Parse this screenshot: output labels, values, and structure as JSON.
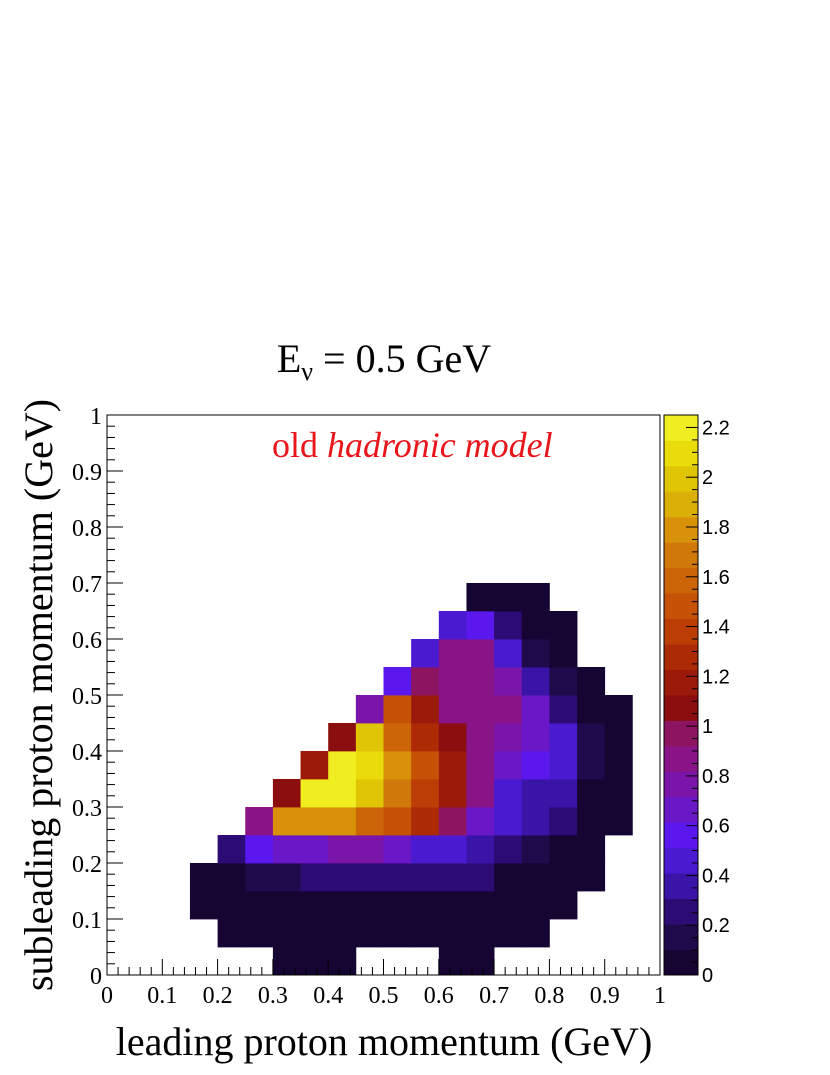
{
  "chart_data": {
    "type": "heatmap",
    "title": "E",
    "title_subscript": "ν",
    "title_rest": " = 0.5 GeV",
    "annotation_plain": "old ",
    "annotation_italic": "hadronic model",
    "annotation_color": "#e8151b",
    "xlabel": "leading proton momentum (GeV)",
    "ylabel": "subleading proton momentum (GeV)",
    "xlim": [
      0,
      1
    ],
    "ylim": [
      0,
      1
    ],
    "bin_width": 0.05,
    "x_ticks": [
      "0",
      "0.1",
      "0.2",
      "0.3",
      "0.4",
      "0.5",
      "0.6",
      "0.7",
      "0.8",
      "0.9",
      "1"
    ],
    "y_ticks": [
      "0",
      "0.1",
      "0.2",
      "0.3",
      "0.4",
      "0.5",
      "0.6",
      "0.7",
      "0.8",
      "0.9",
      "1"
    ],
    "z_range": [
      0,
      2.25
    ],
    "z_ticks": [
      "0",
      "0.2",
      "0.4",
      "0.6",
      "0.8",
      "1",
      "1.2",
      "1.4",
      "1.6",
      "1.8",
      "2",
      "2.2"
    ],
    "palette": [
      "#160433",
      "#1f0a4c",
      "#2c0c74",
      "#3a14a6",
      "#4a1ad0",
      "#5a18ee",
      "#6a17c8",
      "#7b14a8",
      "#891488",
      "#8c1460",
      "#8a0e0e",
      "#9c1a0a",
      "#ac2a06",
      "#bc3e06",
      "#c65208",
      "#cc6408",
      "#d0780a",
      "#d8920a",
      "#dcae08",
      "#e0c406",
      "#eadc0a",
      "#f0ee20"
    ],
    "cells": [
      {
        "row": 0,
        "values": [
          null,
          null,
          null,
          null,
          null,
          null,
          0.05,
          0.05,
          0.05,
          null,
          null,
          null,
          0.05,
          0.05,
          null,
          null,
          null,
          null,
          null,
          null
        ]
      },
      {
        "row": 1,
        "values": [
          null,
          null,
          null,
          null,
          0.05,
          0.05,
          0.05,
          0.05,
          0.05,
          0.05,
          0.05,
          0.05,
          0.05,
          0.05,
          0.05,
          0.05,
          null,
          null,
          null,
          null
        ]
      },
      {
        "row": 2,
        "values": [
          null,
          null,
          null,
          0.05,
          0.05,
          0.05,
          0.05,
          0.05,
          0.05,
          0.05,
          0.05,
          0.05,
          0.05,
          0.05,
          0.05,
          0.05,
          0.05,
          null,
          null,
          null
        ]
      },
      {
        "row": 3,
        "values": [
          null,
          null,
          null,
          0.05,
          0.05,
          0.2,
          0.2,
          0.3,
          0.3,
          0.3,
          0.3,
          0.3,
          0.25,
          0.25,
          0.05,
          0.05,
          0.05,
          0.05,
          null,
          null
        ]
      },
      {
        "row": 4,
        "values": [
          null,
          null,
          null,
          null,
          0.25,
          0.55,
          0.65,
          0.65,
          0.75,
          0.75,
          0.65,
          0.5,
          0.45,
          0.4,
          0.3,
          0.2,
          0.05,
          0.05,
          null,
          null
        ]
      },
      {
        "row": 5,
        "values": [
          null,
          null,
          null,
          null,
          null,
          0.85,
          1.75,
          1.75,
          1.75,
          1.6,
          1.45,
          1.3,
          1.0,
          0.7,
          0.45,
          0.35,
          0.25,
          0.05,
          0.05,
          null
        ]
      },
      {
        "row": 6,
        "values": [
          null,
          null,
          null,
          null,
          null,
          null,
          1.05,
          2.25,
          2.25,
          2.0,
          1.7,
          1.4,
          1.2,
          0.85,
          0.5,
          0.4,
          0.35,
          0.05,
          0.05,
          null
        ]
      },
      {
        "row": 7,
        "values": [
          null,
          null,
          null,
          null,
          null,
          null,
          null,
          1.15,
          2.25,
          2.1,
          1.8,
          1.45,
          1.15,
          0.85,
          0.65,
          0.6,
          0.45,
          0.2,
          0.05,
          null
        ]
      },
      {
        "row": 8,
        "values": [
          null,
          null,
          null,
          null,
          null,
          null,
          null,
          null,
          1.05,
          1.95,
          1.55,
          1.3,
          1.05,
          0.85,
          0.75,
          0.7,
          0.5,
          0.2,
          0.05,
          null
        ]
      },
      {
        "row": 9,
        "values": [
          null,
          null,
          null,
          null,
          null,
          null,
          null,
          null,
          null,
          0.8,
          1.5,
          1.2,
          0.9,
          0.9,
          0.9,
          0.65,
          0.3,
          0.1,
          0.05,
          null
        ]
      },
      {
        "row": 10,
        "values": [
          null,
          null,
          null,
          null,
          null,
          null,
          null,
          null,
          null,
          null,
          0.6,
          1.0,
          0.85,
          0.85,
          0.75,
          0.35,
          0.2,
          0.05,
          null,
          null
        ]
      },
      {
        "row": 11,
        "values": [
          null,
          null,
          null,
          null,
          null,
          null,
          null,
          null,
          null,
          null,
          null,
          0.45,
          0.9,
          0.9,
          0.5,
          0.2,
          0.05,
          null,
          null,
          null
        ]
      },
      {
        "row": 12,
        "values": [
          null,
          null,
          null,
          null,
          null,
          null,
          null,
          null,
          null,
          null,
          null,
          null,
          0.5,
          0.6,
          0.25,
          0.05,
          0.05,
          null,
          null,
          null
        ]
      },
      {
        "row": 13,
        "values": [
          null,
          null,
          null,
          null,
          null,
          null,
          null,
          null,
          null,
          null,
          null,
          null,
          null,
          0.05,
          0.05,
          0.05,
          null,
          null,
          null,
          null
        ]
      }
    ]
  }
}
